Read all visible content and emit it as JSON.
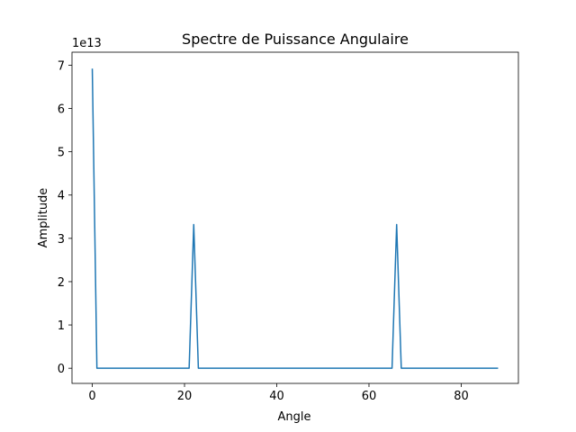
{
  "chart_data": {
    "type": "line",
    "title": "Spectre de Puissance Angulaire",
    "xlabel": "Angle",
    "ylabel": "Amplitude",
    "y_offset_text": "1e13",
    "xlim": [
      -4.4,
      92.4
    ],
    "ylim": [
      -0.35,
      7.3
    ],
    "x_ticks": [
      0,
      20,
      40,
      60,
      80
    ],
    "y_ticks": [
      0,
      1,
      2,
      3,
      4,
      5,
      6,
      7
    ],
    "grid": false,
    "series": [
      {
        "color": "#1f77b4",
        "points": [
          [
            0,
            6.92
          ],
          [
            1,
            0
          ],
          [
            21,
            0
          ],
          [
            22,
            3.32
          ],
          [
            23,
            0
          ],
          [
            65,
            0
          ],
          [
            66,
            3.32
          ],
          [
            67,
            0
          ],
          [
            88,
            0
          ]
        ]
      }
    ]
  }
}
